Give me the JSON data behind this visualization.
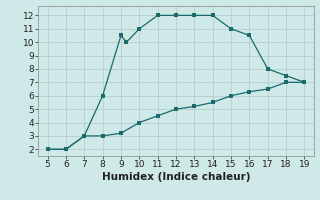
{
  "xlabel": "Humidex (Indice chaleur)",
  "background_color": "#cfe8e8",
  "grid_color": "#b0c8c8",
  "line_color": "#1a6b6b",
  "x_upper": [
    5,
    6,
    7,
    8,
    9,
    9.3,
    10,
    11,
    12,
    13,
    14,
    15,
    16,
    17,
    18,
    19
  ],
  "y_upper": [
    2,
    2,
    3,
    6,
    10.5,
    10.0,
    11,
    12,
    12,
    12,
    12,
    11,
    10.5,
    8,
    7.5,
    7
  ],
  "x_lower": [
    5,
    6,
    7,
    8,
    9,
    10,
    11,
    12,
    13,
    14,
    15,
    16,
    17,
    18,
    19
  ],
  "y_lower": [
    2,
    2,
    3,
    3,
    3.2,
    4.0,
    4.5,
    5.0,
    5.2,
    5.5,
    6.0,
    6.3,
    6.5,
    7.0,
    7.0
  ],
  "xlim": [
    4.5,
    19.5
  ],
  "ylim": [
    1.5,
    12.7
  ],
  "xticks": [
    5,
    6,
    7,
    8,
    9,
    10,
    11,
    12,
    13,
    14,
    15,
    16,
    17,
    18,
    19
  ],
  "yticks": [
    2,
    3,
    4,
    5,
    6,
    7,
    8,
    9,
    10,
    11,
    12
  ],
  "marker_size": 2.5,
  "line_width": 0.9,
  "tick_fontsize": 6.5,
  "xlabel_fontsize": 7.5
}
